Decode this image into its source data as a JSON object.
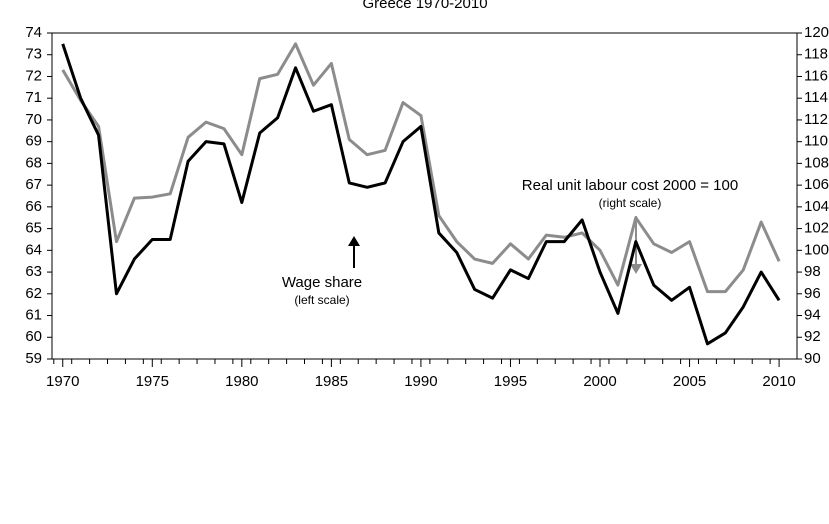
{
  "chart_data": {
    "type": "line",
    "title": "Greece 1970-2010",
    "x": [
      1970,
      1971,
      1972,
      1973,
      1974,
      1975,
      1976,
      1977,
      1978,
      1979,
      1980,
      1981,
      1982,
      1983,
      1984,
      1985,
      1986,
      1987,
      1988,
      1989,
      1990,
      1991,
      1992,
      1993,
      1994,
      1995,
      1996,
      1997,
      1998,
      1999,
      2000,
      2001,
      2002,
      2003,
      2004,
      2005,
      2006,
      2007,
      2008,
      2009,
      2010
    ],
    "series": [
      {
        "name": "Wage share",
        "color": "#000000",
        "axis": "y",
        "values": [
          73.5,
          71.0,
          69.3,
          62.0,
          63.6,
          64.5,
          64.5,
          68.1,
          69.0,
          68.9,
          66.2,
          69.4,
          70.1,
          72.4,
          70.4,
          70.7,
          67.1,
          66.9,
          67.1,
          69.0,
          69.7,
          64.8,
          63.9,
          62.2,
          61.8,
          63.1,
          62.7,
          64.4,
          64.4,
          65.4,
          63.0,
          61.1,
          64.4,
          62.4,
          61.7,
          62.3,
          59.7,
          60.2,
          61.4,
          63.0,
          61.7
        ]
      },
      {
        "name": "Real unit labour cost 2000 = 100",
        "color": "#8c8c8c",
        "axis": "y2",
        "values": [
          116.6,
          113.8,
          111.4,
          100.8,
          104.8,
          104.9,
          105.2,
          110.4,
          111.8,
          111.2,
          108.8,
          115.8,
          116.2,
          119.0,
          115.2,
          117.2,
          110.2,
          108.8,
          109.2,
          113.6,
          112.4,
          103.2,
          100.8,
          99.2,
          98.8,
          100.6,
          99.2,
          101.4,
          101.2,
          101.6,
          100.0,
          96.8,
          103.0,
          100.6,
          99.8,
          100.8,
          96.2,
          96.2,
          98.2,
          102.6,
          99.0
        ]
      }
    ],
    "annotations": [
      {
        "text": "Wage share",
        "subtext": "(left scale)"
      },
      {
        "text": "Real unit labour cost 2000 = 100",
        "subtext": "(right scale)"
      }
    ],
    "xlim": [
      1969.4,
      2011
    ],
    "xticks": [
      1970,
      1975,
      1980,
      1985,
      1990,
      1995,
      2000,
      2005,
      2010
    ],
    "ylim": [
      59,
      74
    ],
    "yticks": [
      59,
      60,
      61,
      62,
      63,
      64,
      65,
      66,
      67,
      68,
      69,
      70,
      71,
      72,
      73,
      74
    ],
    "y2lim": [
      90,
      120
    ],
    "y2ticks": [
      90,
      92,
      94,
      96,
      98,
      100,
      102,
      104,
      106,
      108,
      110,
      112,
      114,
      116,
      118,
      120
    ]
  }
}
